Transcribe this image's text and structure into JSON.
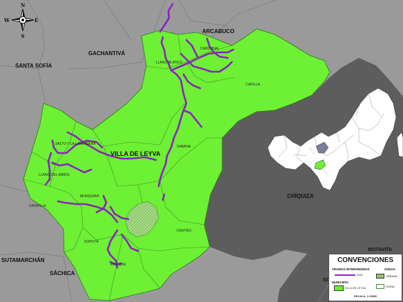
{
  "map": {
    "places_outside": [
      {
        "name": "GACHANTIVÁ"
      },
      {
        "name": "SANTA SOFÍA"
      },
      {
        "name": "ARCABUCO"
      },
      {
        "name": "CHÍQUIZA"
      },
      {
        "name": "SUTAMARCHÁN"
      },
      {
        "name": "SÁCHICA"
      },
      {
        "name": "MOTAVITA"
      },
      {
        "name": "SO"
      }
    ],
    "municipality_label": "VILLA DE LEYVA",
    "veredas": [
      {
        "name": "CARDONAL"
      },
      {
        "name": "LLANO BLANCO"
      },
      {
        "name": "CAPILLA"
      },
      {
        "name": "SALTO Y LA LAVANDERA"
      },
      {
        "name": "LLANO DEL ARBOL"
      },
      {
        "name": "CARRILLA"
      },
      {
        "name": "MONQUIRÁ"
      },
      {
        "name": "SABANA"
      },
      {
        "name": "SOPOTÁ"
      },
      {
        "name": "CENTRO"
      },
      {
        "name": "RITOQUE"
      }
    ],
    "compass": {
      "n": "N",
      "s": "S",
      "e": "E",
      "w": "W"
    },
    "colors": {
      "municipality": "#6ef034",
      "neighbors": "#9a9a9a",
      "dark_region": "#5d5d5d",
      "roads": "#8a22c2",
      "urban": "#a8dc88"
    }
  },
  "legend": {
    "title": "CONVENCIONES",
    "roads_heading": "TRAMOS INTERVENIDOS",
    "zones_heading": "ZONAS",
    "roads_year": "2022",
    "urban_label": "URBANA",
    "rural_label": "RURAL",
    "municipality_heading": "MUNICIPIO",
    "municipality_item": "VILLA DE LEYVA",
    "scale": "ESCALA_1:25000"
  }
}
